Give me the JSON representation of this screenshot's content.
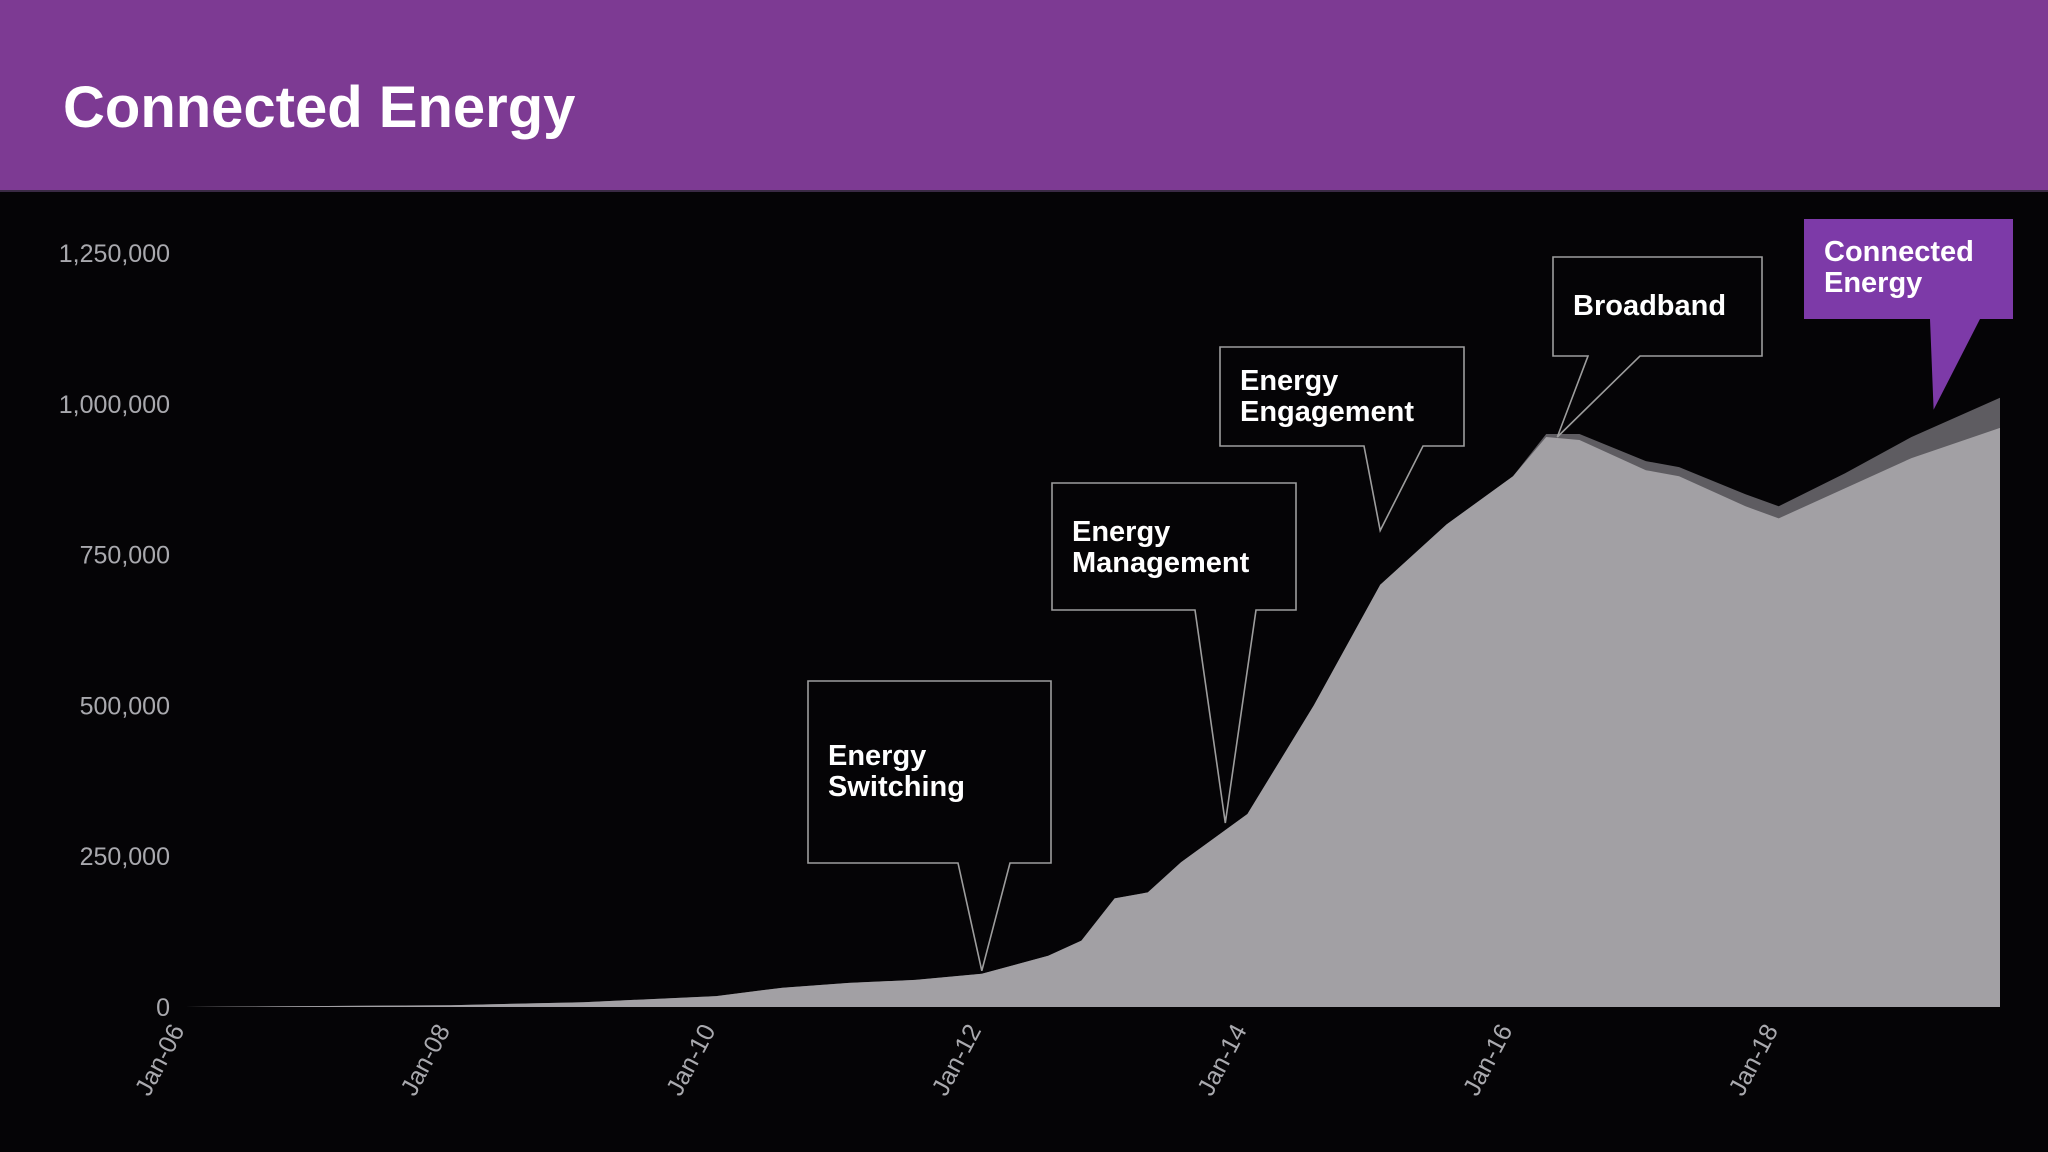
{
  "header": {
    "title": "Connected Energy"
  },
  "colors": {
    "header_bg": "#7d3a93",
    "background": "#050406",
    "area_fill": "#a2a0a4",
    "area_top_fill": "#5e5c61",
    "callout_border": "#9d9d9d",
    "highlight_callout": "#7d3aa8",
    "text": "#ffffff",
    "tick": "#a9a9ae"
  },
  "chart_data": {
    "type": "area",
    "title": "",
    "xlabel": "",
    "ylabel": "",
    "ylim": [
      0,
      1250000
    ],
    "xlim": [
      "2006-01",
      "2019-09"
    ],
    "y_ticks": [
      "0",
      "250,000",
      "500,000",
      "750,000",
      "1,000,000",
      "1,250,000"
    ],
    "y_tick_values": [
      0,
      250000,
      500000,
      750000,
      1000000,
      1250000
    ],
    "x_ticks": [
      "Jan-06",
      "Jan-08",
      "Jan-10",
      "Jan-12",
      "Jan-14",
      "Jan-16",
      "Jan-18"
    ],
    "x_tick_values": [
      "2006-01",
      "2008-01",
      "2010-01",
      "2012-01",
      "2014-01",
      "2016-01",
      "2018-01"
    ],
    "grid": false,
    "series": [
      {
        "x": [
          "2006-01",
          "2008-01",
          "2009-01",
          "2010-01",
          "2010-07",
          "2011-01",
          "2011-07",
          "2012-01",
          "2012-07",
          "2012-10",
          "2013-01",
          "2013-04",
          "2013-07",
          "2014-01",
          "2014-07",
          "2015-01",
          "2015-07",
          "2016-01",
          "2016-04",
          "2016-07",
          "2017-01",
          "2017-04",
          "2017-10",
          "2018-01",
          "2018-07",
          "2019-01",
          "2019-09"
        ],
        "values": [
          0,
          3000,
          8000,
          18000,
          32000,
          40000,
          45000,
          55000,
          85000,
          110000,
          180000,
          190000,
          240000,
          320000,
          500000,
          700000,
          800000,
          880000,
          945000,
          940000,
          890000,
          880000,
          830000,
          810000,
          860000,
          910000,
          960000
        ]
      },
      {
        "x": [
          "2006-01",
          "2008-01",
          "2009-01",
          "2010-01",
          "2010-07",
          "2011-01",
          "2011-07",
          "2012-01",
          "2012-07",
          "2012-10",
          "2013-01",
          "2013-04",
          "2013-07",
          "2014-01",
          "2014-07",
          "2015-01",
          "2015-07",
          "2016-01",
          "2016-04",
          "2016-07",
          "2017-01",
          "2017-04",
          "2017-10",
          "2018-01",
          "2018-07",
          "2019-01",
          "2019-09"
        ],
        "values": [
          0,
          3000,
          8000,
          18000,
          32000,
          40000,
          45000,
          55000,
          85000,
          110000,
          180000,
          190000,
          240000,
          320000,
          500000,
          700000,
          800000,
          880000,
          950000,
          950000,
          905000,
          895000,
          850000,
          830000,
          885000,
          945000,
          1010000
        ]
      }
    ],
    "annotations": [
      {
        "label": [
          "Energy",
          "Switching"
        ],
        "x": "2012-01",
        "value": 60000,
        "highlight": false
      },
      {
        "label": [
          "Energy",
          "Management"
        ],
        "x": "2013-11",
        "value": 305000,
        "highlight": false
      },
      {
        "label": [
          "Energy",
          "Engagement"
        ],
        "x": "2015-01",
        "value": 790000,
        "highlight": false
      },
      {
        "label": [
          "Broadband"
        ],
        "x": "2016-05",
        "value": 945000,
        "highlight": false
      },
      {
        "label": [
          "Connected",
          "Energy"
        ],
        "x": "2019-03",
        "value": 990000,
        "highlight": true
      }
    ]
  }
}
